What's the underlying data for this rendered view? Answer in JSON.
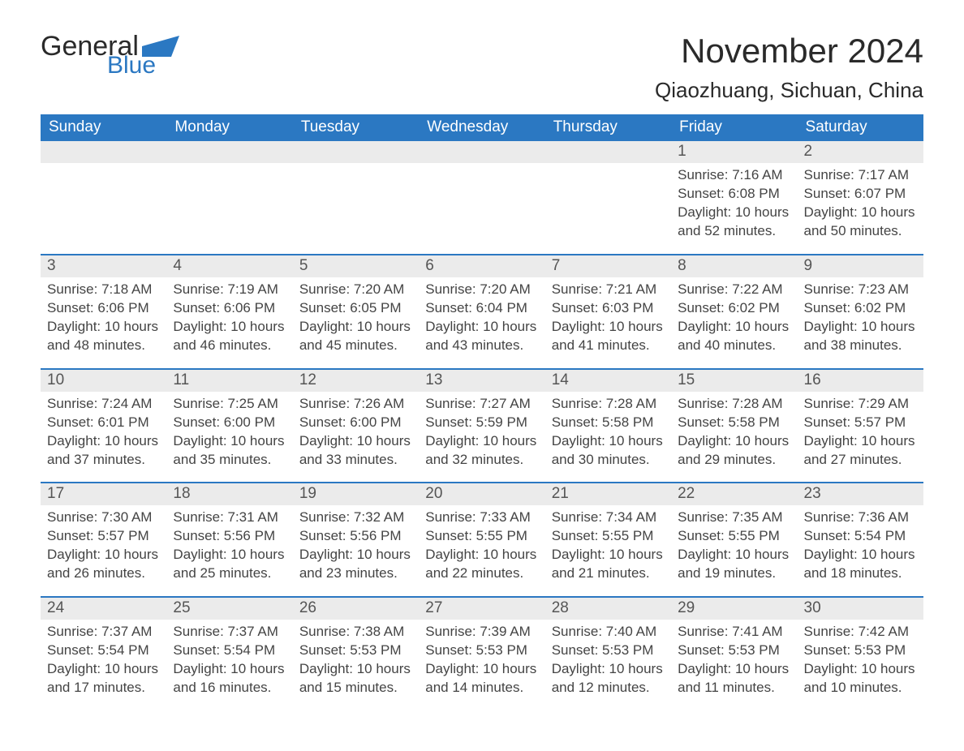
{
  "logo": {
    "text_general": "General",
    "text_blue": "Blue",
    "flag_color": "#2b78c2",
    "general_color": "#2a2a2a"
  },
  "header": {
    "month_title": "November 2024",
    "location": "Qiaozhuang, Sichuan, China"
  },
  "styling": {
    "header_bg": "#2b78c2",
    "header_text": "#ffffff",
    "daynum_bg": "#ebebeb",
    "daynum_text": "#555555",
    "body_text": "#444444",
    "week_border": "#2b78c2",
    "page_bg": "#ffffff",
    "month_title_fontsize": 42,
    "location_fontsize": 26,
    "weekday_fontsize": 19,
    "daynum_fontsize": 19,
    "body_fontsize": 17
  },
  "weekdays": [
    "Sunday",
    "Monday",
    "Tuesday",
    "Wednesday",
    "Thursday",
    "Friday",
    "Saturday"
  ],
  "weeks": [
    [
      {
        "empty": true
      },
      {
        "empty": true
      },
      {
        "empty": true
      },
      {
        "empty": true
      },
      {
        "empty": true
      },
      {
        "day": "1",
        "sunrise": "Sunrise: 7:16 AM",
        "sunset": "Sunset: 6:08 PM",
        "daylight1": "Daylight: 10 hours",
        "daylight2": "and 52 minutes."
      },
      {
        "day": "2",
        "sunrise": "Sunrise: 7:17 AM",
        "sunset": "Sunset: 6:07 PM",
        "daylight1": "Daylight: 10 hours",
        "daylight2": "and 50 minutes."
      }
    ],
    [
      {
        "day": "3",
        "sunrise": "Sunrise: 7:18 AM",
        "sunset": "Sunset: 6:06 PM",
        "daylight1": "Daylight: 10 hours",
        "daylight2": "and 48 minutes."
      },
      {
        "day": "4",
        "sunrise": "Sunrise: 7:19 AM",
        "sunset": "Sunset: 6:06 PM",
        "daylight1": "Daylight: 10 hours",
        "daylight2": "and 46 minutes."
      },
      {
        "day": "5",
        "sunrise": "Sunrise: 7:20 AM",
        "sunset": "Sunset: 6:05 PM",
        "daylight1": "Daylight: 10 hours",
        "daylight2": "and 45 minutes."
      },
      {
        "day": "6",
        "sunrise": "Sunrise: 7:20 AM",
        "sunset": "Sunset: 6:04 PM",
        "daylight1": "Daylight: 10 hours",
        "daylight2": "and 43 minutes."
      },
      {
        "day": "7",
        "sunrise": "Sunrise: 7:21 AM",
        "sunset": "Sunset: 6:03 PM",
        "daylight1": "Daylight: 10 hours",
        "daylight2": "and 41 minutes."
      },
      {
        "day": "8",
        "sunrise": "Sunrise: 7:22 AM",
        "sunset": "Sunset: 6:02 PM",
        "daylight1": "Daylight: 10 hours",
        "daylight2": "and 40 minutes."
      },
      {
        "day": "9",
        "sunrise": "Sunrise: 7:23 AM",
        "sunset": "Sunset: 6:02 PM",
        "daylight1": "Daylight: 10 hours",
        "daylight2": "and 38 minutes."
      }
    ],
    [
      {
        "day": "10",
        "sunrise": "Sunrise: 7:24 AM",
        "sunset": "Sunset: 6:01 PM",
        "daylight1": "Daylight: 10 hours",
        "daylight2": "and 37 minutes."
      },
      {
        "day": "11",
        "sunrise": "Sunrise: 7:25 AM",
        "sunset": "Sunset: 6:00 PM",
        "daylight1": "Daylight: 10 hours",
        "daylight2": "and 35 minutes."
      },
      {
        "day": "12",
        "sunrise": "Sunrise: 7:26 AM",
        "sunset": "Sunset: 6:00 PM",
        "daylight1": "Daylight: 10 hours",
        "daylight2": "and 33 minutes."
      },
      {
        "day": "13",
        "sunrise": "Sunrise: 7:27 AM",
        "sunset": "Sunset: 5:59 PM",
        "daylight1": "Daylight: 10 hours",
        "daylight2": "and 32 minutes."
      },
      {
        "day": "14",
        "sunrise": "Sunrise: 7:28 AM",
        "sunset": "Sunset: 5:58 PM",
        "daylight1": "Daylight: 10 hours",
        "daylight2": "and 30 minutes."
      },
      {
        "day": "15",
        "sunrise": "Sunrise: 7:28 AM",
        "sunset": "Sunset: 5:58 PM",
        "daylight1": "Daylight: 10 hours",
        "daylight2": "and 29 minutes."
      },
      {
        "day": "16",
        "sunrise": "Sunrise: 7:29 AM",
        "sunset": "Sunset: 5:57 PM",
        "daylight1": "Daylight: 10 hours",
        "daylight2": "and 27 minutes."
      }
    ],
    [
      {
        "day": "17",
        "sunrise": "Sunrise: 7:30 AM",
        "sunset": "Sunset: 5:57 PM",
        "daylight1": "Daylight: 10 hours",
        "daylight2": "and 26 minutes."
      },
      {
        "day": "18",
        "sunrise": "Sunrise: 7:31 AM",
        "sunset": "Sunset: 5:56 PM",
        "daylight1": "Daylight: 10 hours",
        "daylight2": "and 25 minutes."
      },
      {
        "day": "19",
        "sunrise": "Sunrise: 7:32 AM",
        "sunset": "Sunset: 5:56 PM",
        "daylight1": "Daylight: 10 hours",
        "daylight2": "and 23 minutes."
      },
      {
        "day": "20",
        "sunrise": "Sunrise: 7:33 AM",
        "sunset": "Sunset: 5:55 PM",
        "daylight1": "Daylight: 10 hours",
        "daylight2": "and 22 minutes."
      },
      {
        "day": "21",
        "sunrise": "Sunrise: 7:34 AM",
        "sunset": "Sunset: 5:55 PM",
        "daylight1": "Daylight: 10 hours",
        "daylight2": "and 21 minutes."
      },
      {
        "day": "22",
        "sunrise": "Sunrise: 7:35 AM",
        "sunset": "Sunset: 5:55 PM",
        "daylight1": "Daylight: 10 hours",
        "daylight2": "and 19 minutes."
      },
      {
        "day": "23",
        "sunrise": "Sunrise: 7:36 AM",
        "sunset": "Sunset: 5:54 PM",
        "daylight1": "Daylight: 10 hours",
        "daylight2": "and 18 minutes."
      }
    ],
    [
      {
        "day": "24",
        "sunrise": "Sunrise: 7:37 AM",
        "sunset": "Sunset: 5:54 PM",
        "daylight1": "Daylight: 10 hours",
        "daylight2": "and 17 minutes."
      },
      {
        "day": "25",
        "sunrise": "Sunrise: 7:37 AM",
        "sunset": "Sunset: 5:54 PM",
        "daylight1": "Daylight: 10 hours",
        "daylight2": "and 16 minutes."
      },
      {
        "day": "26",
        "sunrise": "Sunrise: 7:38 AM",
        "sunset": "Sunset: 5:53 PM",
        "daylight1": "Daylight: 10 hours",
        "daylight2": "and 15 minutes."
      },
      {
        "day": "27",
        "sunrise": "Sunrise: 7:39 AM",
        "sunset": "Sunset: 5:53 PM",
        "daylight1": "Daylight: 10 hours",
        "daylight2": "and 14 minutes."
      },
      {
        "day": "28",
        "sunrise": "Sunrise: 7:40 AM",
        "sunset": "Sunset: 5:53 PM",
        "daylight1": "Daylight: 10 hours",
        "daylight2": "and 12 minutes."
      },
      {
        "day": "29",
        "sunrise": "Sunrise: 7:41 AM",
        "sunset": "Sunset: 5:53 PM",
        "daylight1": "Daylight: 10 hours",
        "daylight2": "and 11 minutes."
      },
      {
        "day": "30",
        "sunrise": "Sunrise: 7:42 AM",
        "sunset": "Sunset: 5:53 PM",
        "daylight1": "Daylight: 10 hours",
        "daylight2": "and 10 minutes."
      }
    ]
  ]
}
